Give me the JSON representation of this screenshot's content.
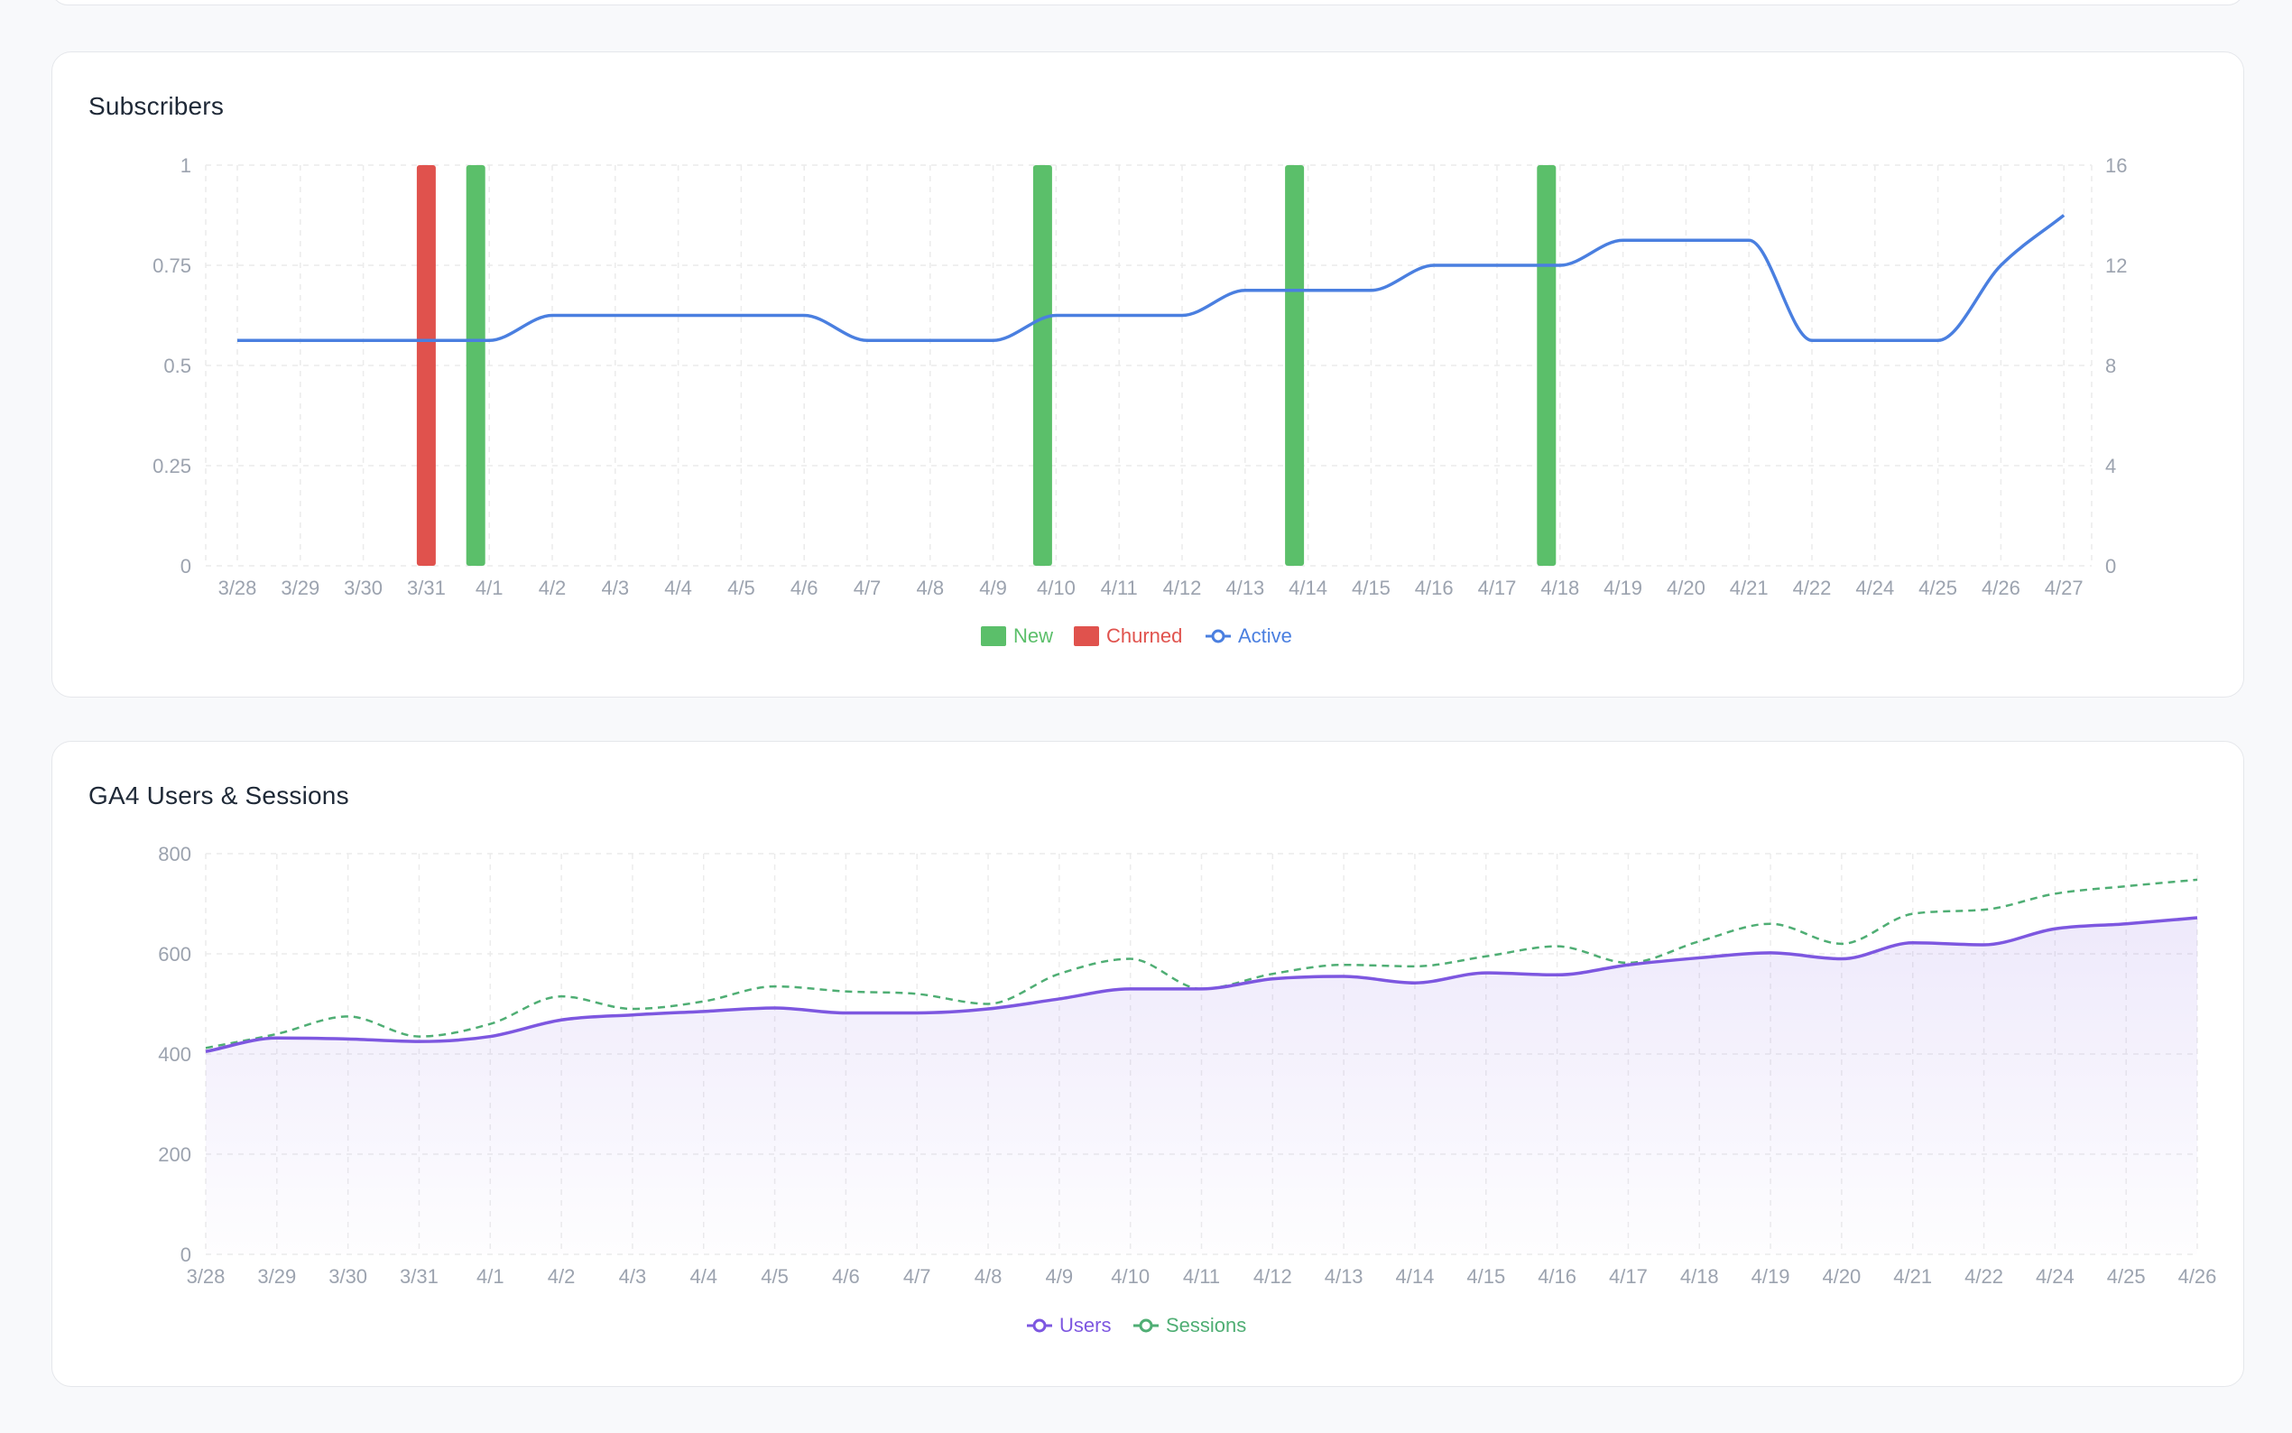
{
  "colors": {
    "new": "#5bbf6a",
    "churned": "#e0524d",
    "active": "#4a7fe0",
    "users": "#7d57e0",
    "sessions": "#4fae74",
    "grid": "#ececec",
    "tick": "#9ca3af"
  },
  "subscribers": {
    "title": "Subscribers",
    "legend": {
      "new": "New",
      "churned": "Churned",
      "active": "Active"
    }
  },
  "ga4": {
    "title": "GA4 Users & Sessions",
    "legend": {
      "users": "Users",
      "sessions": "Sessions"
    }
  },
  "chart_data": [
    {
      "type": "bar",
      "title": "Subscribers",
      "categories": [
        "3/28",
        "3/29",
        "3/30",
        "3/31",
        "4/1",
        "4/2",
        "4/3",
        "4/4",
        "4/5",
        "4/6",
        "4/7",
        "4/8",
        "4/9",
        "4/10",
        "4/11",
        "4/12",
        "4/13",
        "4/14",
        "4/15",
        "4/16",
        "4/17",
        "4/18",
        "4/19",
        "4/20",
        "4/21",
        "4/22",
        "4/24",
        "4/25",
        "4/26",
        "4/27"
      ],
      "ylim_left": [
        0,
        1
      ],
      "yticks_left": [
        "0",
        "0.25",
        "0.5",
        "0.75",
        "1"
      ],
      "ylim_right": [
        0,
        16
      ],
      "yticks_right": [
        "0",
        "4",
        "8",
        "12",
        "16"
      ],
      "grid": true,
      "legend_position": "bottom",
      "series": [
        {
          "name": "New",
          "kind": "bar",
          "axis": "left",
          "values": [
            0,
            0,
            0,
            0,
            1,
            0,
            0,
            0,
            0,
            0,
            0,
            0,
            0,
            1,
            0,
            0,
            0,
            1,
            0,
            0,
            0,
            1,
            0,
            0,
            0,
            0,
            0,
            0,
            0,
            0
          ]
        },
        {
          "name": "Churned",
          "kind": "bar",
          "axis": "left",
          "values": [
            0,
            0,
            0,
            1,
            0,
            0,
            0,
            0,
            0,
            0,
            0,
            0,
            0,
            0,
            0,
            0,
            0,
            0,
            0,
            0,
            0,
            0,
            0,
            0,
            0,
            0,
            0,
            0,
            0,
            0
          ]
        },
        {
          "name": "Active",
          "kind": "line",
          "axis": "right",
          "values": [
            9,
            9,
            9,
            9,
            9,
            10,
            10,
            10,
            10,
            10,
            9,
            9,
            9,
            10,
            10,
            10,
            11,
            11,
            11,
            12,
            12,
            12,
            13,
            13,
            13,
            9,
            9,
            9,
            12,
            14
          ]
        }
      ]
    },
    {
      "type": "area",
      "title": "GA4 Users & Sessions",
      "categories": [
        "3/28",
        "3/29",
        "3/30",
        "3/31",
        "4/1",
        "4/2",
        "4/3",
        "4/4",
        "4/5",
        "4/6",
        "4/7",
        "4/8",
        "4/9",
        "4/10",
        "4/11",
        "4/12",
        "4/13",
        "4/14",
        "4/15",
        "4/16",
        "4/17",
        "4/18",
        "4/19",
        "4/20",
        "4/21",
        "4/22",
        "4/24",
        "4/25",
        "4/26"
      ],
      "ylim": [
        0,
        800
      ],
      "yticks": [
        "0",
        "200",
        "400",
        "600",
        "800"
      ],
      "grid": true,
      "legend_position": "bottom",
      "series": [
        {
          "name": "Users",
          "kind": "area",
          "values": [
            405,
            432,
            430,
            425,
            435,
            468,
            478,
            485,
            492,
            482,
            482,
            490,
            510,
            530,
            530,
            550,
            555,
            542,
            562,
            558,
            578,
            592,
            602,
            590,
            622,
            618,
            650,
            660,
            672
          ]
        },
        {
          "name": "Sessions",
          "kind": "dashed-line",
          "values": [
            412,
            440,
            475,
            435,
            460,
            515,
            490,
            505,
            535,
            525,
            520,
            500,
            560,
            590,
            530,
            560,
            578,
            575,
            595,
            615,
            582,
            625,
            660,
            620,
            680,
            688,
            720,
            735,
            748
          ]
        }
      ]
    }
  ]
}
